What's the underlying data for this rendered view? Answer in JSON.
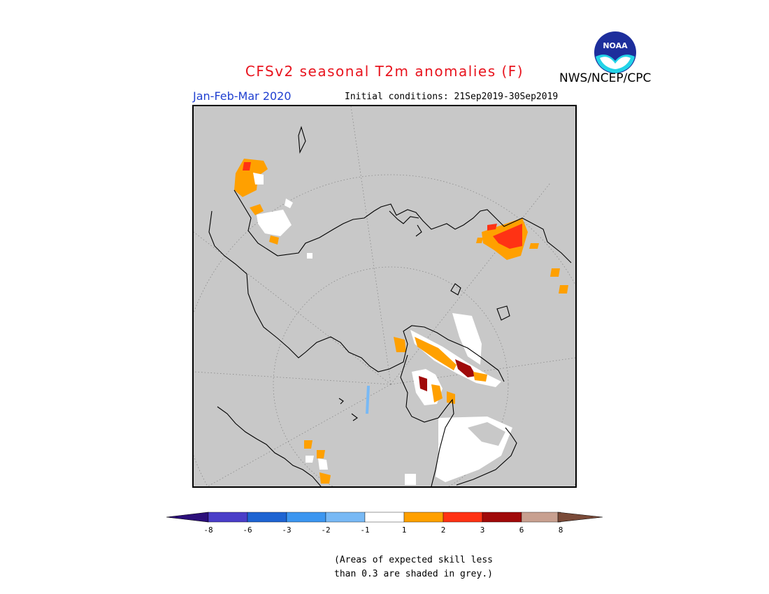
{
  "header": {
    "title": "CFSv2 seasonal T2m anomalies (F)",
    "organization": "NWS/NCEP/CPC",
    "logo_text": "NOAA",
    "season": "Jan-Feb-Mar 2020",
    "initial_conditions": "Initial conditions: 21Sep2019-30Sep2019"
  },
  "map": {
    "projection": "north-polar-stereographic",
    "background_color": "#c8c8c8",
    "coastline_color": "#000000"
  },
  "legend": {
    "ticks": [
      "-8",
      "-6",
      "-3",
      "-2",
      "-1",
      "1",
      "2",
      "3",
      "6",
      "8"
    ],
    "colors": [
      "#2c0f7a",
      "#4a3ec8",
      "#1e64d2",
      "#3c96f0",
      "#78b9f5",
      "#ffffff",
      "#ffa000",
      "#ff3214",
      "#a00a0a",
      "#c8a090",
      "#7a4a38"
    ],
    "note_line1": "(Areas of expected skill less",
    "note_line2": "than 0.3 are shaded in grey.)"
  }
}
